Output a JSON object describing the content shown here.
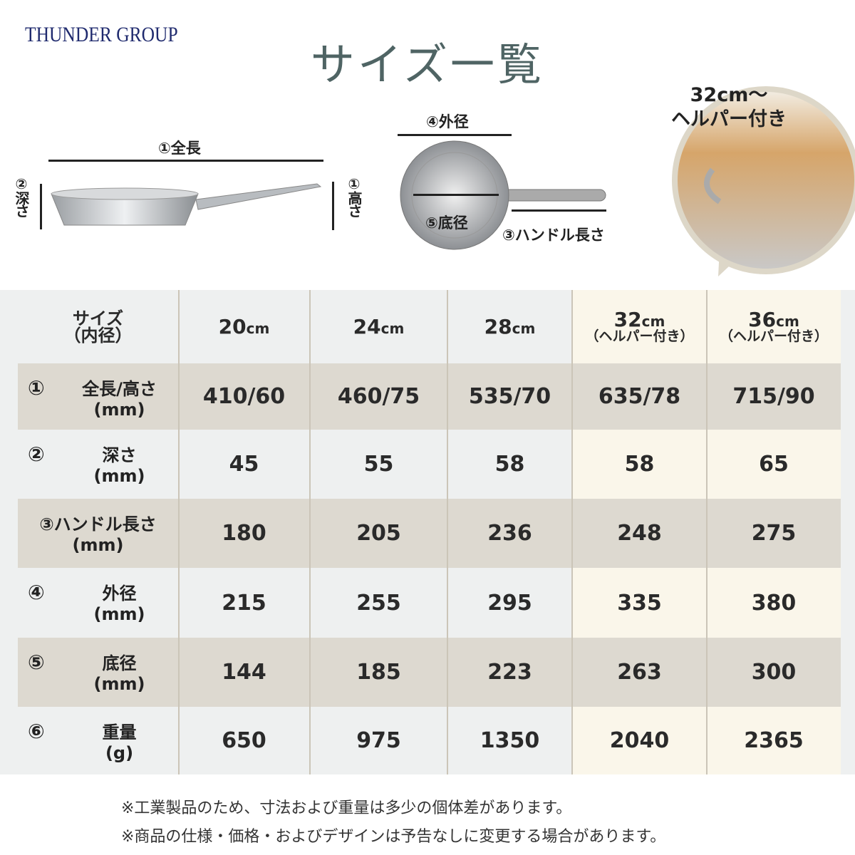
{
  "brand": "THUNDER GROUP",
  "title": "サイズ一覧",
  "diagram": {
    "total_length": "①全長",
    "depth": "②深さ",
    "height": "①高さ",
    "outer_diameter": "④外径",
    "bottom_diameter": "⑤底径",
    "handle_length": "③ハンドル長さ"
  },
  "bubble": {
    "line1": "32cm～",
    "line2": "ヘルパー付き"
  },
  "table": {
    "header": {
      "label": "サイズ",
      "label_sub": "（内径）",
      "columns": [
        {
          "size": "20",
          "unit": "cm",
          "sub": ""
        },
        {
          "size": "24",
          "unit": "cm",
          "sub": ""
        },
        {
          "size": "28",
          "unit": "cm",
          "sub": ""
        },
        {
          "size": "32",
          "unit": "cm",
          "sub": "（ヘルパー付き）"
        },
        {
          "size": "36",
          "unit": "cm",
          "sub": "（ヘルパー付き）"
        }
      ]
    },
    "rows": [
      {
        "num": "①",
        "name": "全長/高さ",
        "unit": "(mm)",
        "values": [
          "410/60",
          "460/75",
          "535/70",
          "635/78",
          "715/90"
        ]
      },
      {
        "num": "②",
        "name": "深さ",
        "unit": "(mm)",
        "values": [
          "45",
          "55",
          "58",
          "58",
          "65"
        ]
      },
      {
        "num": "",
        "name": "③ハンドル長さ",
        "unit": "(mm)",
        "values": [
          "180",
          "205",
          "236",
          "248",
          "275"
        ]
      },
      {
        "num": "④",
        "name": "外径",
        "unit": "(mm)",
        "values": [
          "215",
          "255",
          "295",
          "335",
          "380"
        ]
      },
      {
        "num": "⑤",
        "name": "底径",
        "unit": "(mm)",
        "values": [
          "144",
          "185",
          "223",
          "263",
          "300"
        ]
      },
      {
        "num": "⑥",
        "name": "重量",
        "unit": "(g)",
        "values": [
          "650",
          "975",
          "1350",
          "2040",
          "2365"
        ]
      }
    ]
  },
  "notes": [
    "※工業製品のため、寸法および重量は多少の個体差があります。",
    "※商品の仕様・価格・およびデザインは予告なしに変更する場合があります。"
  ],
  "colors": {
    "brand": "#1f2a6e",
    "title": "#4f6464",
    "row_dark": "#ddd9d0",
    "row_light": "#eef0f0",
    "cream": "#faf6ea"
  }
}
